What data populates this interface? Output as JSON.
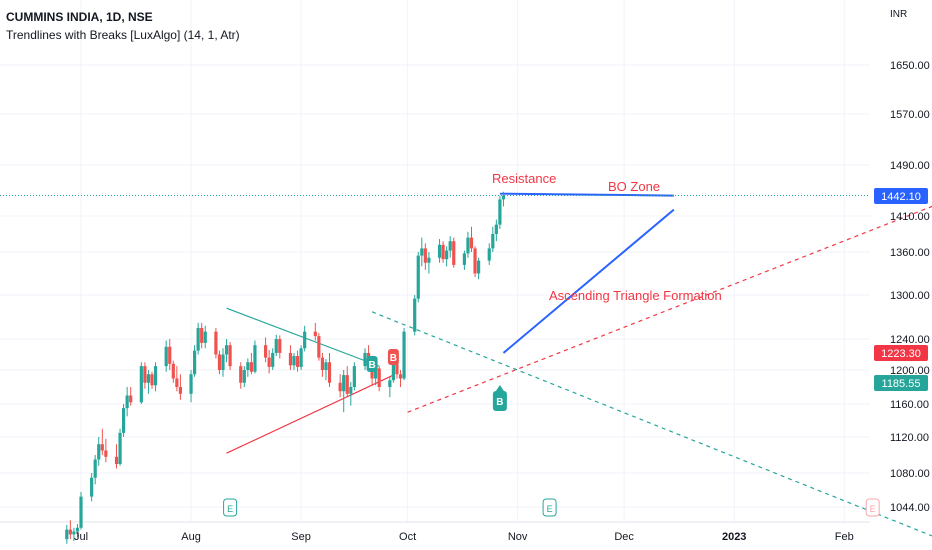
{
  "header": {
    "title": "CUMMINS INDIA, 1D, NSE",
    "indicator": "Trendlines with Breaks [LuxAlgo] (14, 1, Atr)"
  },
  "colors": {
    "up": "#26a69a",
    "down": "#ef5350",
    "resistance_line": "#2962ff",
    "support_line": "#f23645",
    "lux_teal": "#26a69a",
    "price_badge_blue": "#2962ff",
    "price_badge_red": "#f23645",
    "price_badge_teal": "#26a69a",
    "annotation_text": "#f23645",
    "grid": "#f0f3fa",
    "axis_text": "#131722"
  },
  "chart_data": {
    "type": "candlestick",
    "currency": "INR",
    "y_ticks": [
      1044,
      1080,
      1120,
      1160,
      1200,
      1240,
      1300,
      1360,
      1410,
      1490,
      1570,
      1650
    ],
    "y_tick_labels": [
      "1044.00",
      "1080.00",
      "1120.00",
      "1160.00",
      "1200.00",
      "1240.00",
      "1300.00",
      "1360.00",
      "1410.00",
      "1490.00",
      "1570.00",
      "1650.00"
    ],
    "x_ticks": [
      "Jul",
      "Aug",
      "Sep",
      "Oct",
      "Nov",
      "Dec",
      "2023",
      "Feb"
    ],
    "x_tick_dates": [
      "2022-07-01",
      "2022-08-01",
      "2022-09-01",
      "2022-10-01",
      "2022-11-01",
      "2022-12-01",
      "2023-01-01",
      "2023-02-01"
    ],
    "price_labels": [
      {
        "value": "1442.10",
        "color": "blue"
      },
      {
        "value": "1223.30",
        "color": "red"
      },
      {
        "value": "1185.55",
        "color": "teal"
      }
    ],
    "annotations": [
      {
        "text": "Resistance"
      },
      {
        "text": "BO Zone"
      },
      {
        "text": "Ascending Triangle Formation"
      }
    ],
    "markers": [
      {
        "text": "B",
        "date": "2022-09-21",
        "type": "break-up"
      },
      {
        "text": "B",
        "date": "2022-09-27",
        "type": "break-down"
      },
      {
        "text": "B",
        "date": "2022-10-27",
        "type": "break-up-large"
      }
    ],
    "earnings": [
      "E",
      "E",
      "E"
    ],
    "candles": [
      [
        1010,
        1025,
        1005,
        1020
      ],
      [
        1020,
        1030,
        1010,
        1015
      ],
      [
        1015,
        1022,
        1008,
        1018
      ],
      [
        1018,
        1026,
        1012,
        1022
      ],
      [
        1022,
        1060,
        1020,
        1055
      ],
      [
        1055,
        1080,
        1050,
        1075
      ],
      [
        1075,
        1100,
        1068,
        1095
      ],
      [
        1095,
        1120,
        1088,
        1112
      ],
      [
        1112,
        1130,
        1100,
        1105
      ],
      [
        1105,
        1118,
        1092,
        1098
      ],
      [
        1098,
        1112,
        1085,
        1090
      ],
      [
        1090,
        1130,
        1088,
        1125
      ],
      [
        1125,
        1160,
        1120,
        1155
      ],
      [
        1155,
        1180,
        1145,
        1170
      ],
      [
        1170,
        1180,
        1158,
        1162
      ],
      [
        1162,
        1210,
        1160,
        1205
      ],
      [
        1205,
        1210,
        1178,
        1185
      ],
      [
        1185,
        1200,
        1172,
        1195
      ],
      [
        1195,
        1198,
        1178,
        1182
      ],
      [
        1182,
        1210,
        1175,
        1205
      ],
      [
        1205,
        1238,
        1198,
        1230
      ],
      [
        1230,
        1240,
        1200,
        1208
      ],
      [
        1208,
        1212,
        1185,
        1190
      ],
      [
        1190,
        1205,
        1175,
        1180
      ],
      [
        1180,
        1195,
        1165,
        1172
      ],
      [
        1172,
        1200,
        1162,
        1195
      ],
      [
        1195,
        1232,
        1192,
        1225
      ],
      [
        1225,
        1262,
        1220,
        1255
      ],
      [
        1255,
        1262,
        1228,
        1235
      ],
      [
        1235,
        1258,
        1228,
        1250
      ],
      [
        1250,
        1255,
        1215,
        1220
      ],
      [
        1220,
        1225,
        1195,
        1200
      ],
      [
        1200,
        1228,
        1192,
        1220
      ],
      [
        1220,
        1240,
        1210,
        1232
      ],
      [
        1232,
        1236,
        1200,
        1205
      ],
      [
        1205,
        1210,
        1178,
        1185
      ],
      [
        1185,
        1205,
        1180,
        1200
      ],
      [
        1200,
        1215,
        1192,
        1210
      ],
      [
        1210,
        1222,
        1195,
        1198
      ],
      [
        1198,
        1238,
        1196,
        1232
      ],
      [
        1232,
        1242,
        1210,
        1216
      ],
      [
        1216,
        1226,
        1196,
        1204
      ],
      [
        1204,
        1228,
        1200,
        1222
      ],
      [
        1222,
        1246,
        1218,
        1240
      ],
      [
        1240,
        1245,
        1215,
        1222
      ],
      [
        1222,
        1232,
        1200,
        1206
      ],
      [
        1206,
        1222,
        1200,
        1218
      ],
      [
        1218,
        1225,
        1198,
        1204
      ],
      [
        1204,
        1232,
        1200,
        1228
      ],
      [
        1228,
        1258,
        1224,
        1250
      ],
      [
        1250,
        1262,
        1238,
        1244
      ],
      [
        1244,
        1248,
        1212,
        1216
      ],
      [
        1216,
        1222,
        1192,
        1200
      ],
      [
        1200,
        1214,
        1188,
        1210
      ],
      [
        1210,
        1222,
        1180,
        1185
      ],
      [
        1185,
        1195,
        1168,
        1175
      ],
      [
        1175,
        1200,
        1150,
        1194
      ],
      [
        1194,
        1205,
        1168,
        1172
      ],
      [
        1172,
        1186,
        1158,
        1180
      ],
      [
        1180,
        1210,
        1176,
        1205
      ],
      [
        1205,
        1228,
        1200,
        1222
      ],
      [
        1222,
        1232,
        1200,
        1206
      ],
      [
        1206,
        1214,
        1182,
        1190
      ],
      [
        1190,
        1210,
        1182,
        1202
      ],
      [
        1202,
        1205,
        1175,
        1180
      ],
      [
        1180,
        1192,
        1168,
        1188
      ],
      [
        1188,
        1224,
        1185,
        1218
      ],
      [
        1218,
        1226,
        1190,
        1195
      ],
      [
        1195,
        1200,
        1180,
        1190
      ],
      [
        1190,
        1255,
        1188,
        1250
      ],
      [
        1250,
        1300,
        1245,
        1295
      ],
      [
        1295,
        1360,
        1290,
        1355
      ],
      [
        1355,
        1380,
        1340,
        1365
      ],
      [
        1365,
        1372,
        1335,
        1345
      ],
      [
        1345,
        1360,
        1330,
        1352
      ],
      [
        1352,
        1378,
        1345,
        1370
      ],
      [
        1370,
        1375,
        1345,
        1350
      ],
      [
        1350,
        1368,
        1340,
        1362
      ],
      [
        1362,
        1382,
        1352,
        1375
      ],
      [
        1375,
        1380,
        1338,
        1342
      ],
      [
        1342,
        1362,
        1335,
        1358
      ],
      [
        1358,
        1388,
        1352,
        1380
      ],
      [
        1380,
        1395,
        1360,
        1365
      ],
      [
        1365,
        1368,
        1325,
        1330
      ],
      [
        1330,
        1352,
        1322,
        1348
      ],
      [
        1348,
        1372,
        1342,
        1365
      ],
      [
        1365,
        1395,
        1360,
        1385
      ],
      [
        1385,
        1405,
        1375,
        1398
      ],
      [
        1398,
        1442,
        1392,
        1436
      ],
      [
        1436,
        1448,
        1425,
        1442
      ]
    ],
    "drawings": {
      "resistance_line": {
        "x0": "2022-10-27",
        "y0": 1445,
        "x1": "2022-12-15",
        "y1": 1442
      },
      "ascending_support": {
        "x0": "2022-10-28",
        "y0": 1222,
        "x1": "2022-12-15",
        "y1": 1420
      },
      "lux_down_1": {
        "x0": "2022-08-11",
        "y0": 1282,
        "x1": "2022-09-23",
        "y1": 1205
      },
      "lux_down_2": {
        "x0": "2022-09-21",
        "y0": 1277,
        "x1": "2023-02-28",
        "y1": 1010
      },
      "lux_up_1": {
        "x0": "2022-08-11",
        "y0": 1102,
        "x1": "2022-09-27",
        "y1": 1194
      },
      "lux_up_2": {
        "x0": "2022-10-01",
        "y0": 1150,
        "x1": "2023-02-28",
        "y1": 1430
      },
      "price_line": 1442.1
    }
  }
}
